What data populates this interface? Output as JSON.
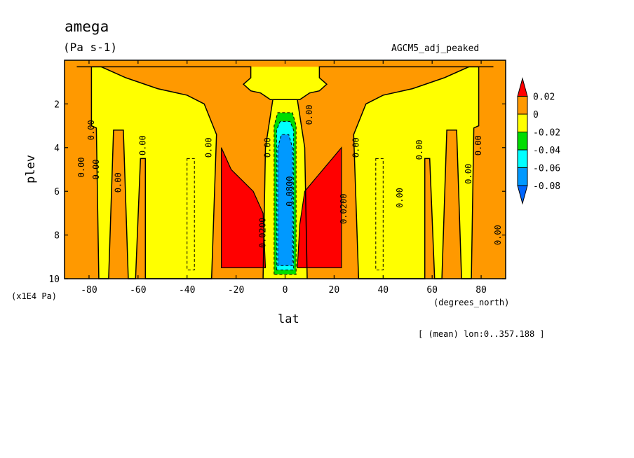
{
  "chart_data": {
    "type": "contour",
    "title": "amega",
    "units": "(Pa s-1)",
    "experiment": "AGCM5_adj_peaked",
    "xlabel": "lat",
    "x_units": "(degrees_north)",
    "ylabel": "plev",
    "y_scale_note": "(x1E4 Pa)",
    "mean_note": "[ (mean) lon:0..357.188 ]",
    "xlim": [
      -90,
      90
    ],
    "ylim": [
      10,
      0
    ],
    "x_ticks": [
      {
        "value": -80,
        "label": "-80"
      },
      {
        "value": -60,
        "label": "-60"
      },
      {
        "value": -40,
        "label": "-40"
      },
      {
        "value": -20,
        "label": "-20"
      },
      {
        "value": 0,
        "label": "0"
      },
      {
        "value": 20,
        "label": "20"
      },
      {
        "value": 40,
        "label": "40"
      },
      {
        "value": 60,
        "label": "60"
      },
      {
        "value": 80,
        "label": "80"
      }
    ],
    "y_ticks": [
      {
        "value": 2,
        "label": "2"
      },
      {
        "value": 4,
        "label": "4"
      },
      {
        "value": 6,
        "label": "6"
      },
      {
        "value": 8,
        "label": "8"
      },
      {
        "value": 10,
        "label": "10"
      }
    ],
    "colorbar": {
      "levels": [
        {
          "label": "0.02",
          "color": "#ff0000"
        },
        {
          "label": "0",
          "color": "#ff9900"
        },
        {
          "label": "-0.02",
          "color": "#ffff00"
        },
        {
          "label": "-0.04",
          "color": "#00dd00"
        },
        {
          "label": "-0.06",
          "color": "#00ffff"
        },
        {
          "label": "-0.08",
          "color": "#0099ff"
        }
      ],
      "colors": [
        "#ff0000",
        "#ff9900",
        "#ffff00",
        "#00dd00",
        "#00ffff",
        "#0099ff",
        "#0066ff"
      ]
    },
    "contour_labels": [
      {
        "lat": -82,
        "plev": 4.9,
        "label": "0.00"
      },
      {
        "lat": -78,
        "plev": 3.2,
        "label": "0.00"
      },
      {
        "lat": -76,
        "plev": 5.0,
        "label": "0.00"
      },
      {
        "lat": -67,
        "plev": 5.6,
        "label": "0.00"
      },
      {
        "lat": -57,
        "plev": 3.9,
        "label": "0.00"
      },
      {
        "lat": -30,
        "plev": 4.0,
        "label": "0.00"
      },
      {
        "lat": -6,
        "plev": 4.0,
        "label": "0.00"
      },
      {
        "lat": 11,
        "plev": 2.5,
        "label": "0.00"
      },
      {
        "lat": 30,
        "plev": 4.0,
        "label": "0.00"
      },
      {
        "lat": 48,
        "plev": 6.3,
        "label": "0.00"
      },
      {
        "lat": 56,
        "plev": 4.1,
        "label": "0.00"
      },
      {
        "lat": 80,
        "plev": 3.9,
        "label": "0.00"
      },
      {
        "lat": 76,
        "plev": 5.2,
        "label": "0.00"
      },
      {
        "lat": 88,
        "plev": 8.0,
        "label": "0.00"
      },
      {
        "lat": -8,
        "plev": 7.9,
        "label": "0.0200"
      },
      {
        "lat": 25,
        "plev": 6.8,
        "label": "0.0200"
      },
      {
        "lat": 3,
        "plev": 6.0,
        "label": "0.0800"
      }
    ]
  }
}
